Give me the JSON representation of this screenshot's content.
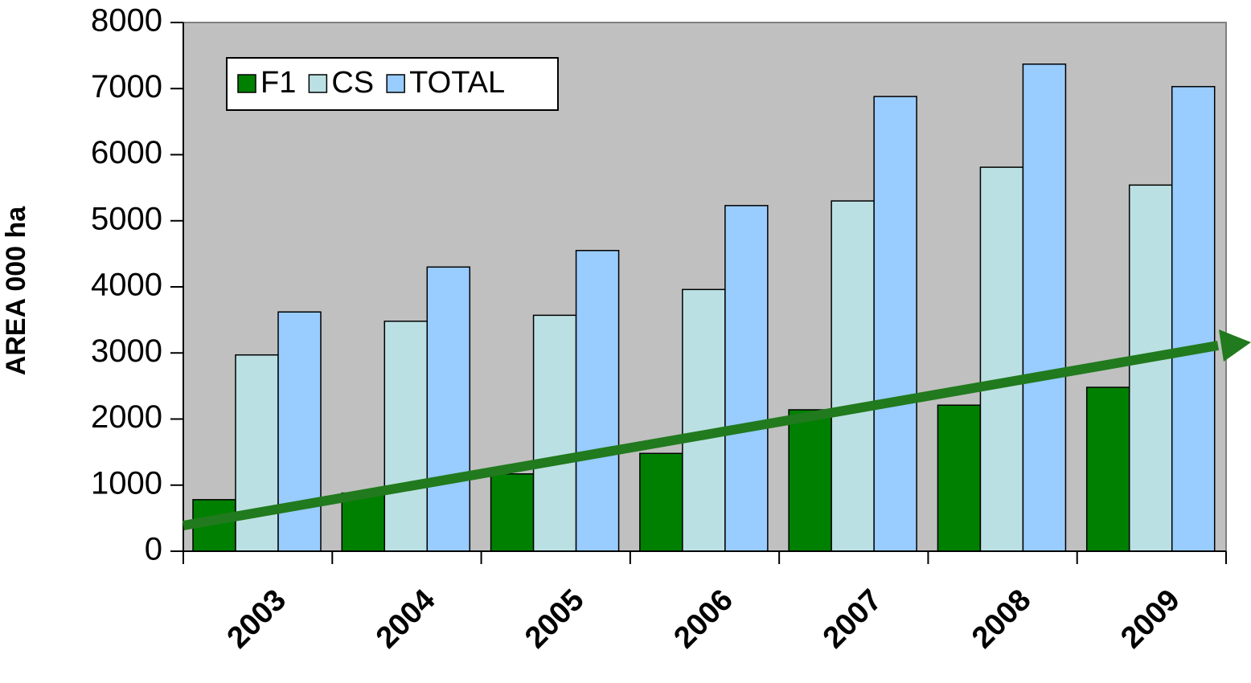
{
  "chart_data": {
    "type": "bar",
    "y_label": "AREA 000 ha",
    "categories": [
      "2003",
      "2004",
      "2005",
      "2006",
      "2007",
      "2008",
      "2009"
    ],
    "series": [
      {
        "name": "F1",
        "color": "#008000",
        "values": [
          780,
          880,
          1170,
          1480,
          2140,
          2210,
          2480
        ]
      },
      {
        "name": "CS",
        "color": "#bbe0e3",
        "values": [
          2970,
          3480,
          3570,
          3960,
          5300,
          5810,
          5540
        ]
      },
      {
        "name": "TOTAL",
        "color": "#99ccff",
        "values": [
          3620,
          4300,
          4550,
          5230,
          6880,
          7370,
          7030
        ]
      }
    ],
    "ylim": [
      0,
      8000
    ],
    "yticks": [
      0,
      1000,
      2000,
      3000,
      4000,
      5000,
      6000,
      7000,
      8000
    ],
    "legend": "upper left"
  }
}
